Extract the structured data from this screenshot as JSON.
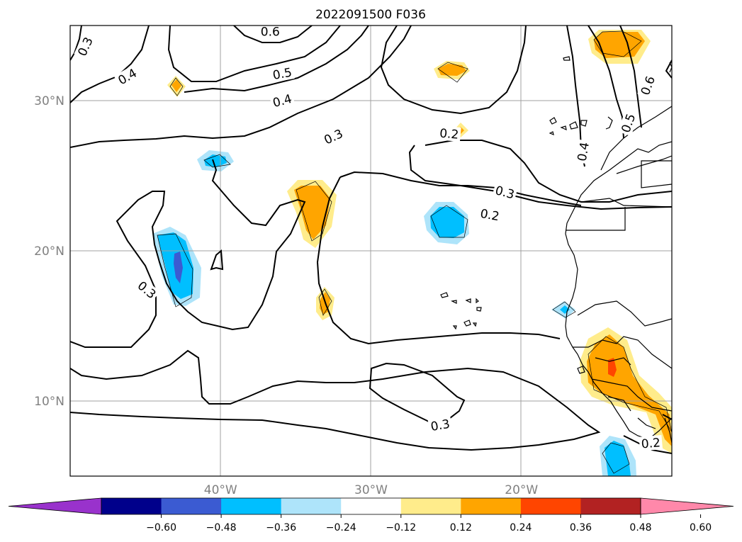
{
  "title": "2022091500 F036",
  "axes": {
    "lat_labels": [
      {
        "value": 30,
        "label": "30°N"
      },
      {
        "value": 20,
        "label": "20°N"
      },
      {
        "value": 10,
        "label": "10°N"
      }
    ],
    "lon_labels": [
      {
        "value": -40,
        "label": "40°W"
      },
      {
        "value": -30,
        "label": "30°W"
      },
      {
        "value": -20,
        "label": "20°W"
      }
    ],
    "lon_range": [
      -50,
      -10
    ],
    "lat_range": [
      5,
      35
    ],
    "grid": true
  },
  "contour_labels": [
    {
      "text": "0.3",
      "lon": -49.0,
      "lat": 33.6,
      "rot": -65
    },
    {
      "text": "0.4",
      "lon": -46.2,
      "lat": 31.6,
      "rot": -30
    },
    {
      "text": "0.6",
      "lon": -36.7,
      "lat": 34.6,
      "rot": 0
    },
    {
      "text": "0.5",
      "lon": -35.9,
      "lat": 31.8,
      "rot": -10
    },
    {
      "text": "0.4",
      "lon": -35.9,
      "lat": 30.0,
      "rot": -15
    },
    {
      "text": "0.3",
      "lon": -32.5,
      "lat": 27.6,
      "rot": -25
    },
    {
      "text": "0.2",
      "lon": -24.8,
      "lat": 27.8,
      "rot": 5
    },
    {
      "text": "0.3",
      "lon": -21.1,
      "lat": 23.9,
      "rot": 15
    },
    {
      "text": "0.2",
      "lon": -22.1,
      "lat": 22.4,
      "rot": 10
    },
    {
      "text": "0.4",
      "lon": -15.9,
      "lat": 26.6,
      "rot": -80
    },
    {
      "text": "0.5",
      "lon": -12.9,
      "lat": 28.5,
      "rot": -70
    },
    {
      "text": "0.6",
      "lon": -11.6,
      "lat": 31.0,
      "rot": -70
    },
    {
      "text": "0.3",
      "lon": -44.9,
      "lat": 17.4,
      "rot": 40
    },
    {
      "text": "0.3",
      "lon": -25.4,
      "lat": 8.4,
      "rot": -10
    },
    {
      "text": "0.2",
      "lon": -11.4,
      "lat": 7.2,
      "rot": -5
    }
  ],
  "colorbar": {
    "colors": [
      "#9932cc",
      "#00008b",
      "#3b5bd2",
      "#00bfff",
      "#aee4fa",
      "#ffffff",
      "#ffec8b",
      "#ffa500",
      "#ff4500",
      "#b22222",
      "#ff88aa"
    ],
    "ticks": [
      "−0.60",
      "−0.48",
      "−0.36",
      "−0.24",
      "−0.12",
      "0.12",
      "0.24",
      "0.36",
      "0.48",
      "0.60"
    ],
    "extend": "both"
  }
}
